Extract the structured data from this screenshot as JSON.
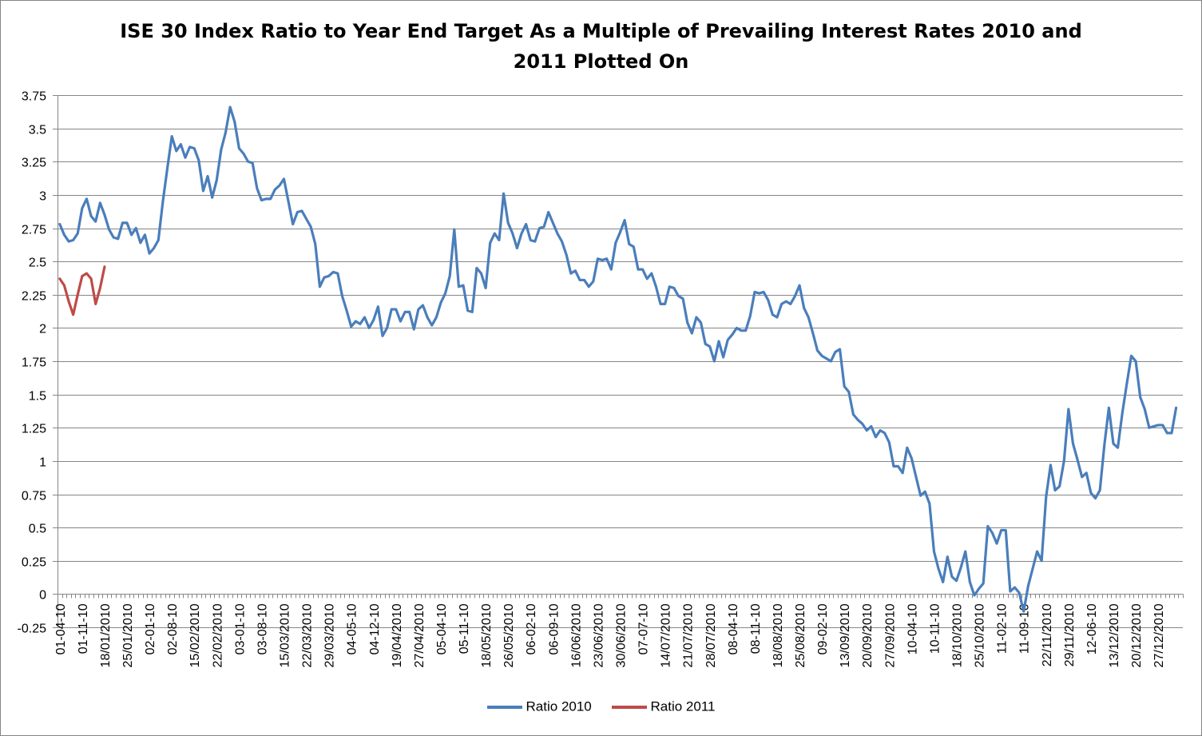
{
  "title": {
    "line1": "ISE 30 Index Ratio to Year End Target As a Multiple of Prevailing Interest Rates 2010 and",
    "line2": "2011 Plotted On"
  },
  "chart_data": {
    "type": "line",
    "title": "ISE 30 Index Ratio to Year End Target As a Multiple of Prevailing Interest Rates 2010 and 2011 Plotted On",
    "xlabel": "",
    "ylabel": "",
    "ylim": [
      -0.25,
      3.75
    ],
    "yticks": [
      -0.25,
      0,
      0.25,
      0.5,
      0.75,
      1,
      1.25,
      1.5,
      1.75,
      2,
      2.25,
      2.5,
      2.75,
      3,
      3.25,
      3.5,
      3.75
    ],
    "ytick_labels": [
      "-0.25",
      "0",
      "0.25",
      "0.5",
      "0.75",
      "1",
      "1.25",
      "1.5",
      "1.75",
      "2",
      "2.25",
      "2.5",
      "2.75",
      "3",
      "3.25",
      "3.5",
      "3.75"
    ],
    "x_count": 251,
    "x_tick_labels": [
      {
        "i": 0,
        "label": "01-04-10"
      },
      {
        "i": 5,
        "label": "01-11-10"
      },
      {
        "i": 10,
        "label": "18/01/2010"
      },
      {
        "i": 15,
        "label": "25/01/2010"
      },
      {
        "i": 20,
        "label": "02-01-10"
      },
      {
        "i": 25,
        "label": "02-08-10"
      },
      {
        "i": 30,
        "label": "15/02/2010"
      },
      {
        "i": 35,
        "label": "22/02/2010"
      },
      {
        "i": 40,
        "label": "03-01-10"
      },
      {
        "i": 45,
        "label": "03-08-10"
      },
      {
        "i": 50,
        "label": "15/03/2010"
      },
      {
        "i": 55,
        "label": "22/03/2010"
      },
      {
        "i": 60,
        "label": "29/03/2010"
      },
      {
        "i": 65,
        "label": "04-05-10"
      },
      {
        "i": 70,
        "label": "04-12-10"
      },
      {
        "i": 75,
        "label": "19/04/2010"
      },
      {
        "i": 80,
        "label": "27/04/2010"
      },
      {
        "i": 85,
        "label": "05-04-10"
      },
      {
        "i": 90,
        "label": "05-11-10"
      },
      {
        "i": 95,
        "label": "18/05/2010"
      },
      {
        "i": 100,
        "label": "26/05/2010"
      },
      {
        "i": 105,
        "label": "06-02-10"
      },
      {
        "i": 110,
        "label": "06-09-10"
      },
      {
        "i": 115,
        "label": "16/06/2010"
      },
      {
        "i": 120,
        "label": "23/06/2010"
      },
      {
        "i": 125,
        "label": "30/06/2010"
      },
      {
        "i": 130,
        "label": "07-07-10"
      },
      {
        "i": 135,
        "label": "14/07/2010"
      },
      {
        "i": 140,
        "label": "21/07/2010"
      },
      {
        "i": 145,
        "label": "28/07/2010"
      },
      {
        "i": 150,
        "label": "08-04-10"
      },
      {
        "i": 155,
        "label": "08-11-10"
      },
      {
        "i": 160,
        "label": "18/08/2010"
      },
      {
        "i": 165,
        "label": "25/08/2010"
      },
      {
        "i": 170,
        "label": "09-02-10"
      },
      {
        "i": 175,
        "label": "13/09/2010"
      },
      {
        "i": 180,
        "label": "20/09/2010"
      },
      {
        "i": 185,
        "label": "27/09/2010"
      },
      {
        "i": 190,
        "label": "10-04-10"
      },
      {
        "i": 195,
        "label": "10-11-10"
      },
      {
        "i": 200,
        "label": "18/10/2010"
      },
      {
        "i": 205,
        "label": "25/10/2010"
      },
      {
        "i": 210,
        "label": "11-02-10"
      },
      {
        "i": 215,
        "label": "11-09-10"
      },
      {
        "i": 220,
        "label": "22/11/2010"
      },
      {
        "i": 225,
        "label": "29/11/2010"
      },
      {
        "i": 230,
        "label": "12-06-10"
      },
      {
        "i": 235,
        "label": "13/12/2010"
      },
      {
        "i": 240,
        "label": "20/12/2010"
      },
      {
        "i": 245,
        "label": "27/12/2010"
      }
    ],
    "legend_position": "bottom",
    "grid": true,
    "series": [
      {
        "name": "Ratio 2010",
        "color": "#4a7ebb",
        "values": [
          2.78,
          2.7,
          2.65,
          2.66,
          2.71,
          2.9,
          2.97,
          2.84,
          2.8,
          2.94,
          2.85,
          2.74,
          2.68,
          2.67,
          2.79,
          2.79,
          2.7,
          2.75,
          2.64,
          2.7,
          2.56,
          2.6,
          2.66,
          2.95,
          3.2,
          3.44,
          3.33,
          3.38,
          3.28,
          3.36,
          3.35,
          3.26,
          3.03,
          3.14,
          2.98,
          3.11,
          3.34,
          3.47,
          3.66,
          3.55,
          3.35,
          3.31,
          3.25,
          3.24,
          3.05,
          2.96,
          2.97,
          2.97,
          3.04,
          3.07,
          3.12,
          2.95,
          2.78,
          2.87,
          2.88,
          2.82,
          2.76,
          2.63,
          2.31,
          2.38,
          2.39,
          2.42,
          2.41,
          2.24,
          2.13,
          2.01,
          2.05,
          2.03,
          2.08,
          2.0,
          2.06,
          2.16,
          1.94,
          2.0,
          2.14,
          2.14,
          2.05,
          2.12,
          2.12,
          1.99,
          2.14,
          2.17,
          2.08,
          2.02,
          2.08,
          2.19,
          2.26,
          2.39,
          2.74,
          2.31,
          2.32,
          2.13,
          2.12,
          2.45,
          2.41,
          2.3,
          2.64,
          2.71,
          2.66,
          3.01,
          2.79,
          2.71,
          2.6,
          2.71,
          2.78,
          2.66,
          2.65,
          2.75,
          2.76,
          2.87,
          2.79,
          2.71,
          2.65,
          2.55,
          2.41,
          2.43,
          2.36,
          2.36,
          2.31,
          2.35,
          2.52,
          2.51,
          2.52,
          2.44,
          2.64,
          2.72,
          2.81,
          2.63,
          2.61,
          2.44,
          2.44,
          2.37,
          2.41,
          2.31,
          2.18,
          2.18,
          2.31,
          2.3,
          2.24,
          2.22,
          2.04,
          1.96,
          2.08,
          2.04,
          1.88,
          1.86,
          1.75,
          1.9,
          1.78,
          1.91,
          1.95,
          2.0,
          1.98,
          1.98,
          2.09,
          2.27,
          2.26,
          2.27,
          2.21,
          2.1,
          2.08,
          2.18,
          2.2,
          2.18,
          2.24,
          2.32,
          2.15,
          2.08,
          1.96,
          1.83,
          1.79,
          1.77,
          1.75,
          1.82,
          1.84,
          1.56,
          1.52,
          1.35,
          1.31,
          1.28,
          1.23,
          1.26,
          1.18,
          1.23,
          1.21,
          1.14,
          0.96,
          0.96,
          0.91,
          1.1,
          1.02,
          0.88,
          0.74,
          0.77,
          0.68,
          0.32,
          0.19,
          0.09,
          0.28,
          0.13,
          0.1,
          0.2,
          0.32,
          0.09,
          -0.01,
          0.04,
          0.08,
          0.51,
          0.46,
          0.38,
          0.48,
          0.48,
          0.02,
          0.05,
          0.01,
          -0.13,
          0.06,
          0.19,
          0.32,
          0.25,
          0.73,
          0.97,
          0.78,
          0.81,
          1.0,
          1.39,
          1.13,
          1.01,
          0.88,
          0.91,
          0.76,
          0.72,
          0.78,
          1.12,
          1.4,
          1.13,
          1.1,
          1.36,
          1.58,
          1.79,
          1.75,
          1.48,
          1.39,
          1.25,
          1.26,
          1.27,
          1.27,
          1.21,
          1.21,
          1.4
        ]
      },
      {
        "name": "Ratio 2011",
        "color": "#be4b48",
        "values": [
          2.37,
          2.32,
          2.2,
          2.1,
          2.25,
          2.39,
          2.41,
          2.37,
          2.18,
          2.3,
          2.46
        ]
      }
    ]
  },
  "legend": {
    "items": [
      {
        "label": "Ratio 2010",
        "color": "#4a7ebb"
      },
      {
        "label": "Ratio 2011",
        "color": "#be4b48"
      }
    ]
  }
}
